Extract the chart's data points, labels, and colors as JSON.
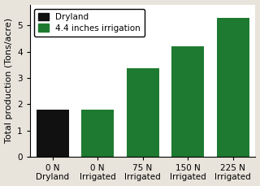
{
  "categories": [
    "0 N\nDryland",
    "0 N\nIrrigated",
    "75 N\nIrrigated",
    "150 N\nIrrigated",
    "225 N\nIrrigated"
  ],
  "values": [
    1.78,
    1.8,
    3.37,
    4.2,
    5.28
  ],
  "bar_colors": [
    "#111111",
    "#1e7a30",
    "#1e7a30",
    "#1e7a30",
    "#1e7a30"
  ],
  "ylabel": "Total production (Tons/acre)",
  "ylim": [
    0,
    5.8
  ],
  "yticks": [
    0,
    1,
    2,
    3,
    4,
    5
  ],
  "legend_labels": [
    "Dryland",
    "4.4 inches irrigation"
  ],
  "legend_colors": [
    "#111111",
    "#1e7a30"
  ],
  "bar_width": 0.72,
  "plot_bg_color": "#ffffff",
  "fig_bg_color": "#e8e4dc",
  "tick_fontsize": 7.5,
  "ylabel_fontsize": 8,
  "legend_fontsize": 7.5
}
